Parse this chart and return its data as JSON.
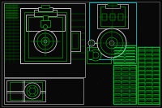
{
  "bg_color": "#080808",
  "g": "#00bb00",
  "g2": "#00dd00",
  "bright": "#00ff44",
  "w": "#cccccc",
  "w2": "#aaaaaa",
  "cyan": "#00cccc",
  "red_dot": "#440000",
  "green_dot": "#003300",
  "figsize": [
    2.0,
    1.33
  ],
  "dpi": 100
}
